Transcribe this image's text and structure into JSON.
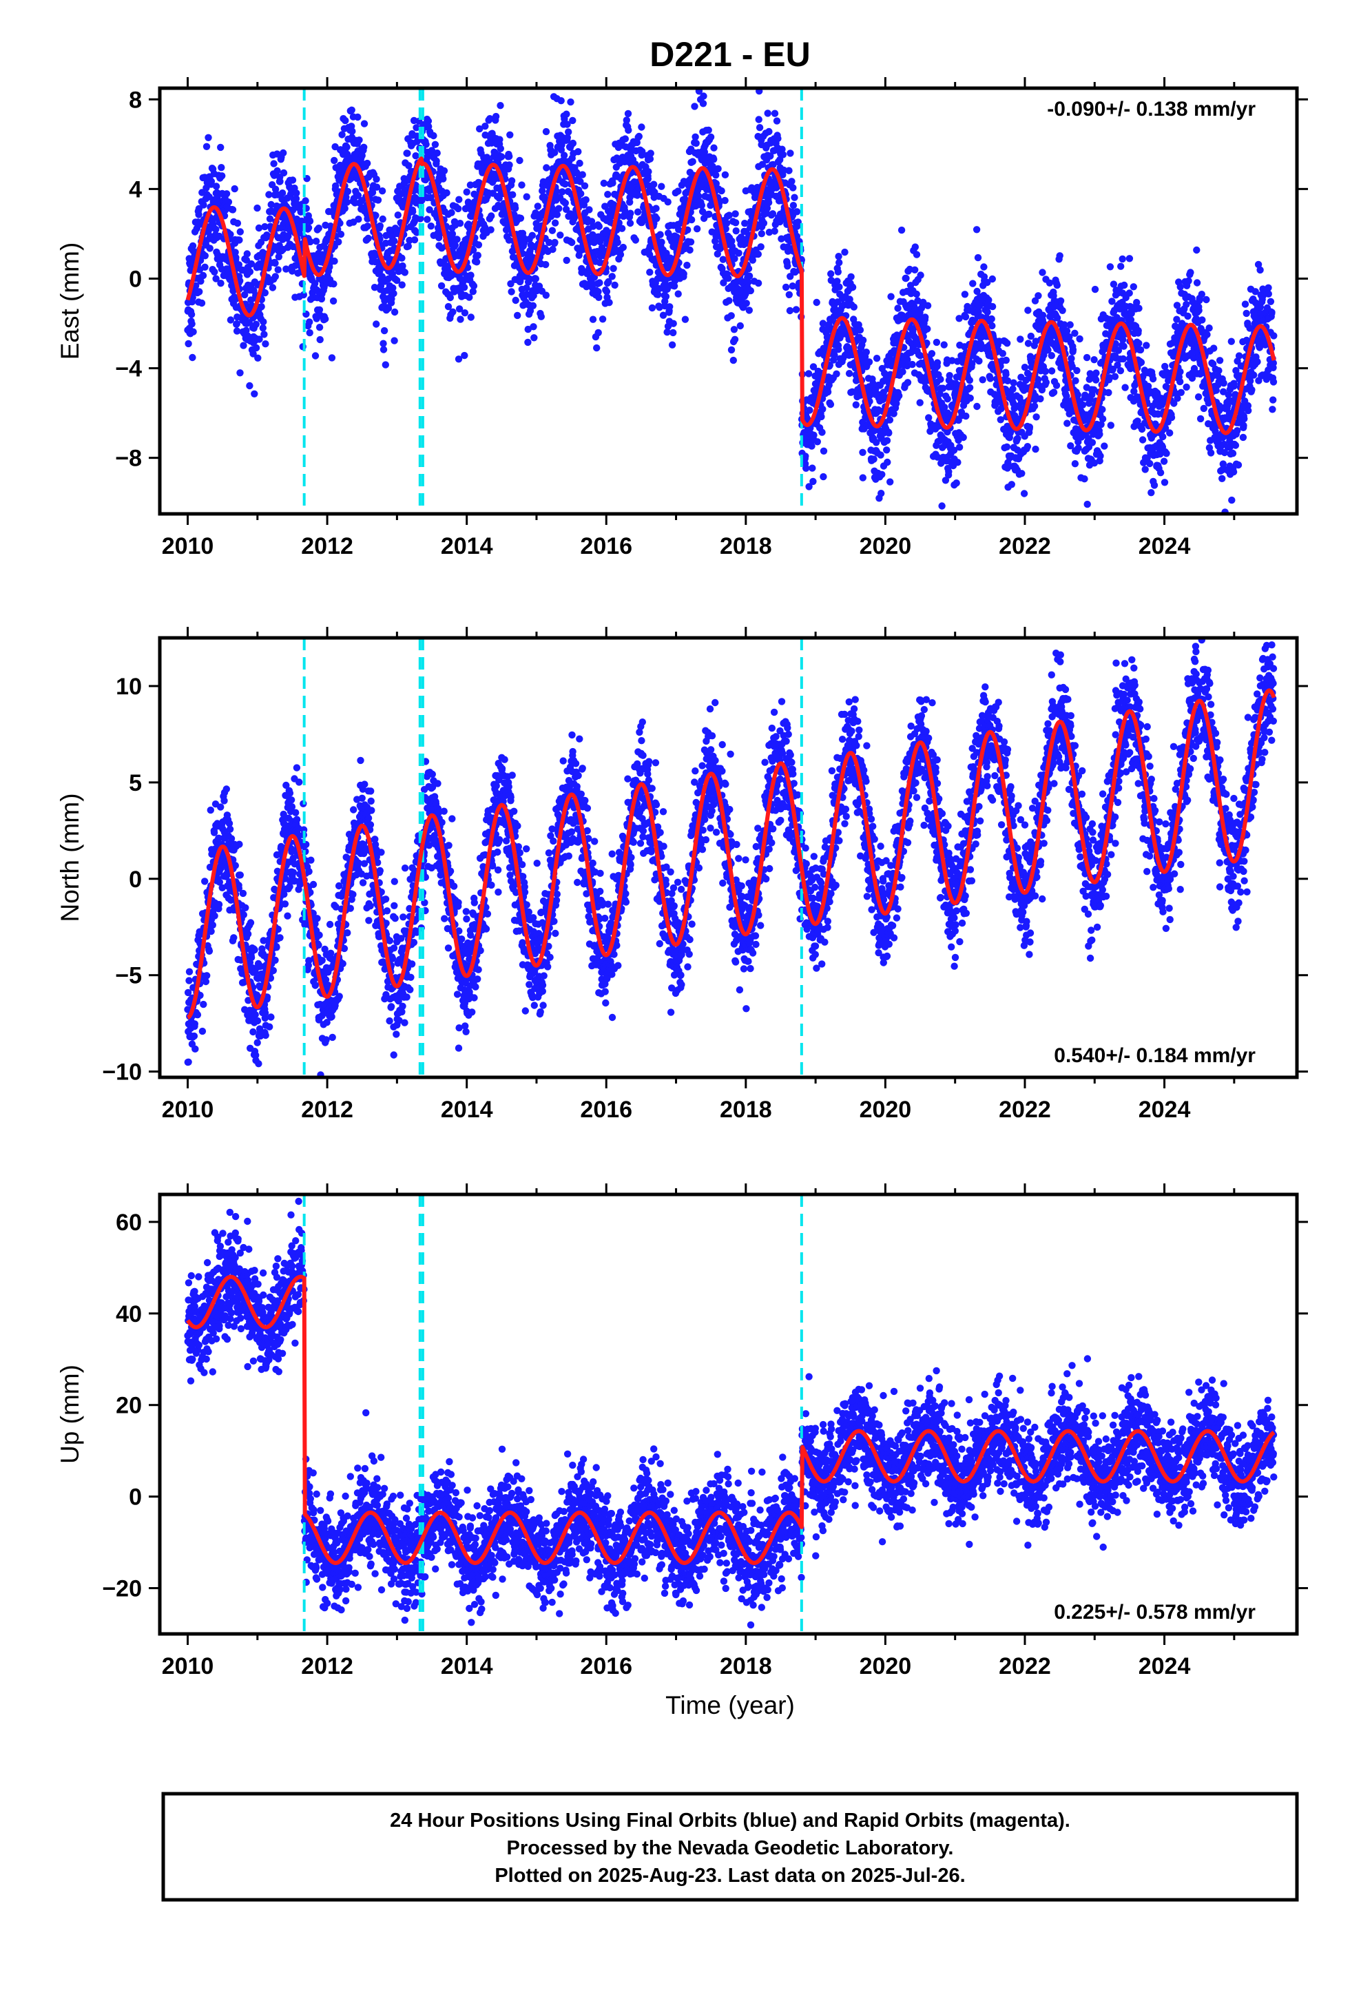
{
  "title": "D221 - EU",
  "x_axis_label": "Time (year)",
  "footer": {
    "line1": "24 Hour Positions Using Final Orbits (blue) and Rapid Orbits (magenta).",
    "line2": "Processed by the Nevada Geodetic Laboratory.",
    "line3": "Plotted on 2025-Aug-23. Last data on 2025-Jul-26."
  },
  "colors": {
    "points": "#1a1aff",
    "fit": "#ff1a1a",
    "breaks": "#00e5ee",
    "frame": "#000000"
  },
  "chart_data": [
    {
      "type": "scatter",
      "component": "East",
      "ylabel": "East (mm)",
      "rate_text": "-0.090+/- 0.138 mm/yr",
      "rate_position": "top-right",
      "xlim": [
        2009.6,
        2025.9
      ],
      "ylim": [
        -10.5,
        8.5
      ],
      "xticks": [
        2010,
        2012,
        2014,
        2016,
        2018,
        2020,
        2022,
        2024
      ],
      "yticks": [
        8,
        4,
        0,
        -4,
        -8
      ],
      "breaks": [
        2011.67,
        2013.33,
        2013.37,
        2018.8
      ],
      "fit_model": {
        "type": "seasonal_with_offsets",
        "segments": [
          {
            "start": 2010.0,
            "end": 2011.67,
            "base": 0.8,
            "trend": -0.05,
            "amplitude": 2.4,
            "peak": 0.38
          },
          {
            "start": 2011.67,
            "end": 2013.35,
            "base": 2.0,
            "trend": 0.3,
            "amplitude": 2.4,
            "peak": 0.38
          },
          {
            "start": 2013.35,
            "end": 2018.8,
            "base": 2.9,
            "trend": -0.05,
            "amplitude": 2.4,
            "peak": 0.38
          },
          {
            "start": 2018.8,
            "end": 2025.57,
            "base": -3.6,
            "trend": -0.06,
            "amplitude": 2.4,
            "peak": 0.38
          }
        ],
        "noise_sd": 1.3
      }
    },
    {
      "type": "scatter",
      "component": "North",
      "ylabel": "North (mm)",
      "rate_text": "0.540+/- 0.184 mm/yr",
      "rate_position": "bottom-right",
      "xlim": [
        2009.6,
        2025.9
      ],
      "ylim": [
        -10.3,
        12.5
      ],
      "xticks": [
        2010,
        2012,
        2014,
        2016,
        2018,
        2020,
        2022,
        2024
      ],
      "yticks": [
        10,
        5,
        0,
        -5,
        -10
      ],
      "breaks": [
        2011.67,
        2013.33,
        2013.37,
        2018.8
      ],
      "fit_model": {
        "type": "seasonal_with_offsets",
        "segments": [
          {
            "start": 2010.0,
            "end": 2025.57,
            "base": -2.9,
            "trend": 0.54,
            "amplitude": 4.3,
            "peak": 0.5
          }
        ],
        "noise_sd": 1.4
      }
    },
    {
      "type": "scatter",
      "component": "Up",
      "ylabel": "Up (mm)",
      "rate_text": "0.225+/- 0.578 mm/yr",
      "rate_position": "bottom-right",
      "xlim": [
        2009.6,
        2025.9
      ],
      "ylim": [
        -30,
        66
      ],
      "xticks": [
        2010,
        2012,
        2014,
        2016,
        2018,
        2020,
        2022,
        2024
      ],
      "yticks": [
        60,
        40,
        20,
        0,
        -20
      ],
      "breaks": [
        2011.67,
        2013.33,
        2013.37,
        2018.8
      ],
      "fit_model": {
        "type": "seasonal_with_offsets",
        "segments": [
          {
            "start": 2010.0,
            "end": 2011.67,
            "base": 42.5,
            "trend": 0.0,
            "amplitude": 5.5,
            "peak": 0.62
          },
          {
            "start": 2011.67,
            "end": 2018.8,
            "base": -9.0,
            "trend": 0.0,
            "amplitude": 5.5,
            "peak": 0.62
          },
          {
            "start": 2018.8,
            "end": 2025.57,
            "base": 8.8,
            "trend": 0.0,
            "amplitude": 5.5,
            "peak": 0.62
          }
        ],
        "noise_sd": 5.2
      }
    }
  ]
}
